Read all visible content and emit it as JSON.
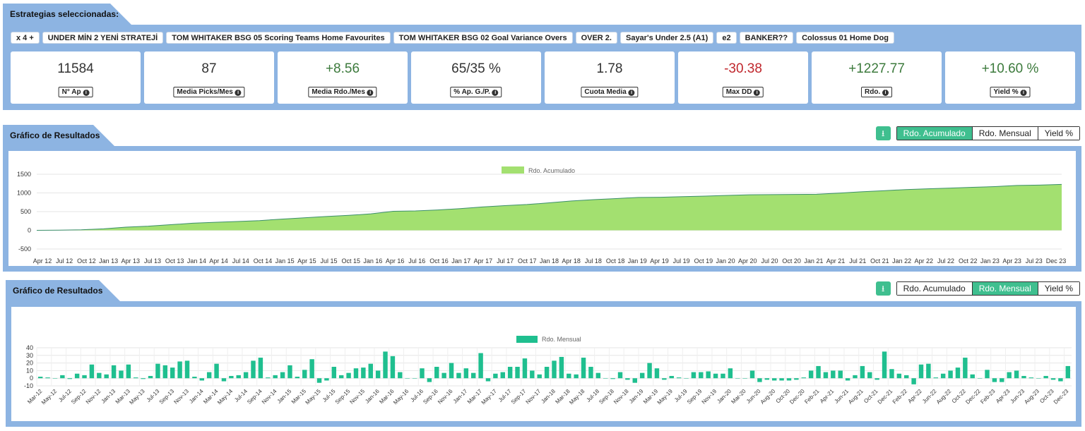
{
  "selection": {
    "title": "Estrategias seleccionadas:",
    "chips": [
      "x 4 +",
      "UNDER MİN 2 YENİ STRATEJİ",
      "TOM WHITAKER BSG 05 Scoring Teams Home Favourites",
      "TOM WHITAKER BSG 02 Goal Variance Overs",
      "OVER 2.",
      "Sayar's Under 2.5 (A1)",
      "e2",
      "BANKER??",
      "Colossus 01 Home Dog"
    ],
    "stats": [
      {
        "value": "11584",
        "label": "N° Ap",
        "tone": "neutral"
      },
      {
        "value": "87",
        "label": "Media Picks/Mes",
        "tone": "neutral"
      },
      {
        "value": "+8.56",
        "label": "Media Rdo./Mes",
        "tone": "pos"
      },
      {
        "value": "65/35 %",
        "label": "% Ap. G./P.",
        "tone": "neutral"
      },
      {
        "value": "1.78",
        "label": "Cuota Media",
        "tone": "neutral"
      },
      {
        "value": "-30.38",
        "label": "Max DD",
        "tone": "neg"
      },
      {
        "value": "+1227.77",
        "label": "Rdo.",
        "tone": "pos"
      },
      {
        "value": "+10.60 %",
        "label": "Yield %",
        "tone": "pos"
      }
    ]
  },
  "chart1": {
    "title": "Gráfico de Resultados",
    "download_icon": "download-icon",
    "buttons": [
      {
        "label": "Rdo. Acumulado",
        "active": true
      },
      {
        "label": "Rdo. Mensual",
        "active": false
      },
      {
        "label": "Yield %",
        "active": false
      }
    ]
  },
  "chart2": {
    "title": "Gráfico de Resultados",
    "download_icon": "download-icon",
    "buttons": [
      {
        "label": "Rdo. Acumulado",
        "active": false
      },
      {
        "label": "Rdo. Mensual",
        "active": true
      },
      {
        "label": "Yield %",
        "active": false
      }
    ]
  },
  "chart_data": [
    {
      "type": "area",
      "series": [
        {
          "name": "Rdo. Acumulado",
          "color": "#a3e070",
          "line_color": "#3b8f6a"
        }
      ],
      "y_ticks": [
        1500,
        1000,
        500,
        0,
        -500
      ],
      "ylim": [
        -500,
        1500
      ],
      "x_tick_labels": [
        "Apr 12",
        "Jul 12",
        "Oct 12",
        "Jan 13",
        "Apr 13",
        "Jul 13",
        "Oct 13",
        "Jan 14",
        "Apr 14",
        "Jul 14",
        "Oct 14",
        "Jan 15",
        "Apr 15",
        "Jul 15",
        "Oct 15",
        "Jan 16",
        "Apr 16",
        "Jul 16",
        "Oct 16",
        "Jan 17",
        "Apr 17",
        "Jul 17",
        "Oct 17",
        "Jan 18",
        "Apr 18",
        "Jul 18",
        "Oct 18",
        "Jan 19",
        "Apr 19",
        "Jul 19",
        "Oct 19",
        "Jan 20",
        "Apr 20",
        "Jul 20",
        "Oct 20",
        "Jan 21",
        "Apr 21",
        "Jul 21",
        "Oct 21",
        "Jan 22",
        "Apr 22",
        "Jul 22",
        "Oct 22",
        "Jan 23",
        "Apr 23",
        "Jul 23",
        "Dec 23"
      ],
      "x": [
        "Apr 12",
        "Jul 12",
        "Oct 12",
        "Jan 13",
        "Apr 13",
        "Jul 13",
        "Oct 13",
        "Jan 14",
        "Apr 14",
        "Jul 14",
        "Oct 14",
        "Jan 15",
        "Apr 15",
        "Jul 15",
        "Oct 15",
        "Jan 16",
        "Apr 16",
        "Jul 16",
        "Oct 16",
        "Jan 17",
        "Apr 17",
        "Jul 17",
        "Oct 17",
        "Jan 18",
        "Apr 18",
        "Jul 18",
        "Oct 18",
        "Jan 19",
        "Apr 19",
        "Jul 19",
        "Oct 19",
        "Jan 20",
        "Apr 20",
        "Jul 20",
        "Oct 20",
        "Jan 21",
        "Apr 21",
        "Jul 21",
        "Oct 21",
        "Jan 22",
        "Apr 22",
        "Jul 22",
        "Oct 22",
        "Jan 23",
        "Apr 23",
        "Jul 23",
        "Dec 23"
      ],
      "values": [
        0,
        5,
        15,
        40,
        85,
        110,
        150,
        190,
        215,
        235,
        260,
        300,
        335,
        370,
        400,
        440,
        510,
        520,
        545,
        580,
        625,
        660,
        690,
        735,
        785,
        820,
        850,
        880,
        885,
        900,
        915,
        935,
        950,
        955,
        960,
        965,
        995,
        1030,
        1060,
        1090,
        1110,
        1130,
        1150,
        1170,
        1200,
        1210,
        1228
      ]
    },
    {
      "type": "bar",
      "series": [
        {
          "name": "Rdo. Mensual",
          "color": "#1fbf8f"
        }
      ],
      "y_ticks": [
        40,
        30,
        20,
        10,
        0,
        -10
      ],
      "ylim": [
        -10,
        40
      ],
      "x_tick_labels": [
        "Mar-12",
        "May-12",
        "Jul-12",
        "Sep-12",
        "Nov-12",
        "Jan-13",
        "Mar-13",
        "May-13",
        "Jul-13",
        "Sep-13",
        "Nov-13",
        "Jan-14",
        "Mar-14",
        "May-14",
        "Jul-14",
        "Sep-14",
        "Nov-14",
        "Jan-15",
        "Mar-15",
        "May-15",
        "Jul-15",
        "Sep-15",
        "Nov-15",
        "Jan-16",
        "Mar-16",
        "May-16",
        "Jul-16",
        "Sep-16",
        "Nov-16",
        "Jan-17",
        "Mar-17",
        "May-17",
        "Jul-17",
        "Sep-17",
        "Nov-17",
        "Jan-18",
        "Mar-18",
        "May-18",
        "Jul-18",
        "Sep-18",
        "Nov-18",
        "Jan-19",
        "Mar-19",
        "May-19",
        "Jul-19",
        "Sep-19",
        "Nov-19",
        "Jan-20",
        "Mar-20",
        "Jun-20",
        "Aug-20",
        "Oct-20",
        "Dec-20",
        "Feb-21",
        "Apr-21",
        "Jun-21",
        "Aug-21",
        "Oct-21",
        "Dec-21",
        "Feb-22",
        "Apr-22",
        "Jun-22",
        "Aug-22",
        "Oct-22",
        "Dec-22",
        "Feb-23",
        "Apr-23",
        "Jun-23",
        "Aug-23",
        "Oct-23",
        "Dec-23"
      ],
      "values": [
        2,
        1,
        0,
        4,
        -1,
        6,
        4,
        18,
        7,
        5,
        17,
        10,
        18,
        1,
        -1,
        3,
        19,
        17,
        14,
        22,
        23,
        2,
        -3,
        8,
        19,
        -4,
        3,
        4,
        8,
        23,
        27,
        1,
        4,
        8,
        17,
        2,
        11,
        25,
        -6,
        -3,
        15,
        4,
        7,
        13,
        14,
        19,
        10,
        35,
        29,
        8,
        0,
        0,
        13,
        -5,
        15,
        7,
        20,
        7,
        13,
        7,
        33,
        -4,
        6,
        8,
        15,
        15,
        26,
        10,
        5,
        15,
        23,
        28,
        6,
        5,
        27,
        15,
        7,
        0,
        -1,
        8,
        -2,
        -6,
        7,
        20,
        13,
        -2,
        3,
        1,
        0,
        8,
        8,
        9,
        6,
        6,
        13,
        0,
        0,
        10,
        -5,
        -2,
        -3,
        -3,
        -3,
        -2,
        1,
        10,
        16,
        8,
        10,
        10,
        -3,
        4,
        16,
        8,
        -2,
        35,
        12,
        6,
        4,
        -8,
        18,
        19,
        1,
        6,
        10,
        14,
        27,
        5,
        0,
        11,
        -5,
        -5,
        8,
        10,
        3,
        1,
        0,
        3,
        -2,
        -4,
        16
      ]
    }
  ]
}
